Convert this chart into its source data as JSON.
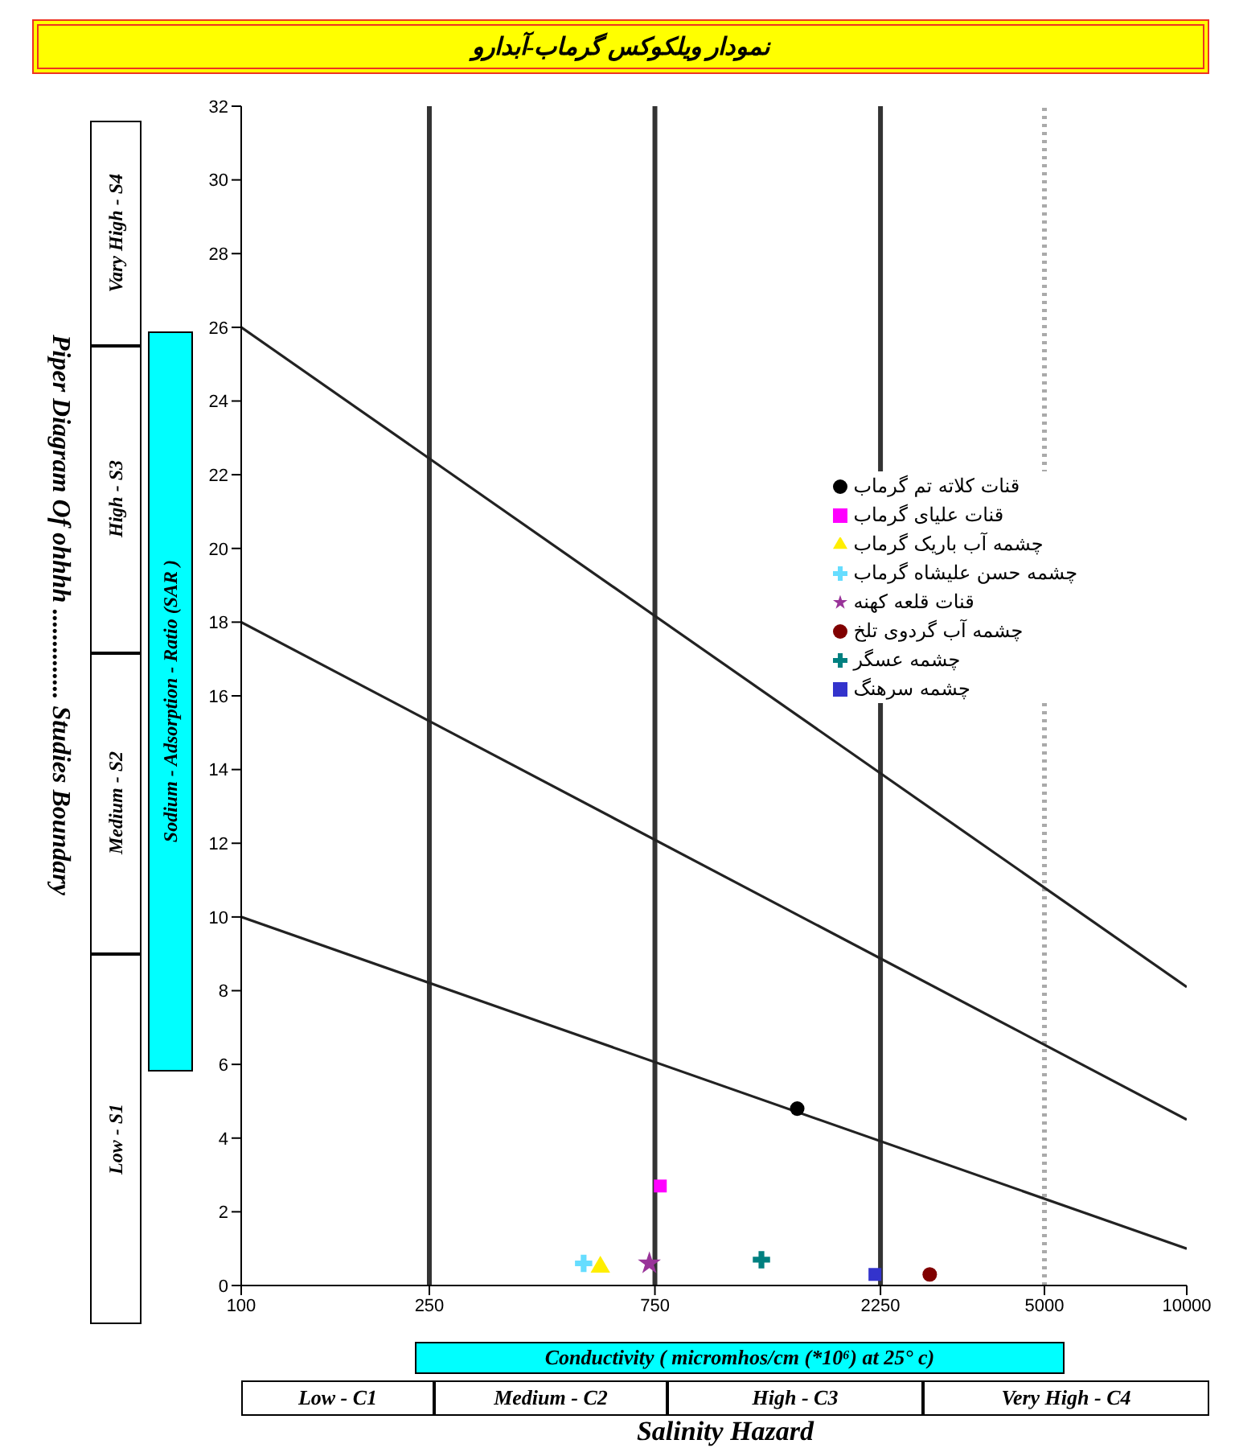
{
  "chart_data": {
    "type": "scatter",
    "title": "نمودار ویلکوکس گرماب-آبدارو",
    "xlabel": "Conductivity ( micromhos/cm (*10⁶) at 25° c)",
    "ylabel": "Sodium - Adsorption - Ratio (SAR )",
    "annotations": [
      "Piper Diagram Of ohhhh .............. Studies Boundary",
      "Low - S1",
      "Medium - S2",
      "High - S3",
      "Vary High - S4",
      "Low - C1",
      "Medium - C2",
      "High - C3",
      "Very High - C4",
      "Salinity Hazard"
    ],
    "log": "x",
    "xlim": [
      100,
      10000
    ],
    "xticks": [
      100,
      250,
      750,
      2250,
      5000,
      10000
    ],
    "ylim": [
      0,
      32
    ],
    "yticks": [
      0,
      2,
      4,
      6,
      8,
      10,
      12,
      14,
      16,
      18,
      20,
      22,
      24,
      26,
      28,
      30,
      32
    ],
    "legend": "right",
    "ref_lines": [
      {
        "axis": "x",
        "value": 250,
        "color": "#333333",
        "line_style": "solid"
      },
      {
        "axis": "x",
        "value": 750,
        "color": "#333333",
        "line_style": "solid"
      },
      {
        "axis": "x",
        "value": 2250,
        "color": "#333333",
        "line_style": "solid"
      },
      {
        "axis": "x",
        "value": 5000,
        "color": "#aaaaaa",
        "line_style": "dotted"
      }
    ],
    "series": [
      {
        "name": "قنات کلاته تم گرماب",
        "color": "#000000",
        "marker": "circle",
        "x": [
          1500
        ],
        "values": [
          4.8
        ]
      },
      {
        "name": "قنات علیای گرماب",
        "color": "#ff00ff",
        "marker": "square",
        "x": [
          770
        ],
        "values": [
          2.7
        ]
      },
      {
        "name": "چشمه آب باریک گرماب",
        "color": "#ffee00",
        "marker": "triangle",
        "x": [
          575
        ],
        "values": [
          0.5
        ]
      },
      {
        "name": "چشمه حسن علیشاه گرماب",
        "color": "#66ddff",
        "marker": "cross",
        "x": [
          530
        ],
        "values": [
          0.6
        ]
      },
      {
        "name": "قنات قلعه کهنه",
        "color": "#993399",
        "marker": "star",
        "x": [
          730
        ],
        "values": [
          0.6
        ]
      },
      {
        "name": "چشمه آب گردوی تلخ",
        "color": "#800000",
        "marker": "circle",
        "x": [
          2860
        ],
        "values": [
          0.3
        ]
      },
      {
        "name": "چشمه عسگر",
        "color": "#008080",
        "marker": "cross",
        "x": [
          1260
        ],
        "values": [
          0.7
        ]
      },
      {
        "name": "چشمه سرهنگ",
        "color": "#3333cc",
        "marker": "square",
        "x": [
          2190
        ],
        "values": [
          0.3
        ]
      },
      {
        "type": "line",
        "color": "#222222",
        "marker": "none",
        "x": [
          100,
          10000
        ],
        "values": [
          26,
          8.1
        ]
      },
      {
        "type": "line",
        "color": "#222222",
        "marker": "none",
        "x": [
          100,
          10000
        ],
        "values": [
          18,
          4.5
        ]
      },
      {
        "type": "line",
        "color": "#222222",
        "marker": "none",
        "x": [
          100,
          10000
        ],
        "values": [
          10,
          1
        ]
      }
    ]
  }
}
